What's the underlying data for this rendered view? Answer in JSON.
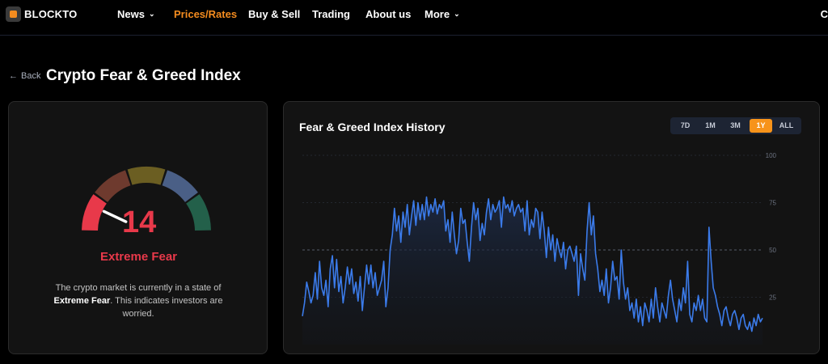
{
  "nav": {
    "logo_text": "BLOCKTO",
    "items": [
      {
        "label": "News",
        "dropdown": true
      },
      {
        "label": "Prices/Rates",
        "active": true
      },
      {
        "label": "Buy & Sell"
      },
      {
        "label": "Trading"
      },
      {
        "label": "About us"
      },
      {
        "label": "More",
        "dropdown": true
      }
    ],
    "edge_text": "C"
  },
  "header": {
    "back_label": "Back",
    "title": "Crypto Fear & Greed Index"
  },
  "gauge": {
    "value": "14",
    "label": "Extreme Fear",
    "description_pre": "The crypto market is currently in a state of ",
    "description_bold": "Extreme Fear",
    "description_post": ". This indicates investors are worried.",
    "colors": {
      "extreme_fear": "#e8394a",
      "fear": "#6e3a2e",
      "neutral": "#6b5e22",
      "greed": "#4a5f86",
      "extreme_greed": "#23604a"
    }
  },
  "history": {
    "title": "Fear & Greed Index History",
    "ranges": [
      "7D",
      "1M",
      "3M",
      "1Y",
      "ALL"
    ],
    "active_range": "1Y"
  },
  "chart_data": {
    "type": "area",
    "title": "Fear & Greed Index History",
    "ylim": [
      0,
      100
    ],
    "yticks": [
      25,
      50,
      75,
      100
    ],
    "reference_line": 50,
    "grid": true,
    "line_color": "#3b7bea",
    "values": [
      15,
      22,
      33,
      28,
      22,
      26,
      38,
      24,
      44,
      30,
      26,
      34,
      20,
      40,
      47,
      30,
      45,
      28,
      36,
      22,
      30,
      41,
      32,
      40,
      27,
      33,
      23,
      36,
      18,
      30,
      42,
      32,
      42,
      30,
      38,
      26,
      30,
      34,
      44,
      20,
      30,
      50,
      58,
      72,
      60,
      68,
      54,
      70,
      62,
      74,
      58,
      68,
      76,
      63,
      75,
      66,
      74,
      66,
      78,
      68,
      74,
      70,
      77,
      69,
      74,
      72,
      76,
      60,
      66,
      54,
      70,
      58,
      48,
      55,
      72,
      64,
      66,
      54,
      44,
      62,
      75,
      66,
      72,
      55,
      64,
      58,
      70,
      77,
      66,
      74,
      70,
      72,
      76,
      62,
      78,
      72,
      74,
      70,
      76,
      68,
      72,
      74,
      70,
      72,
      60,
      76,
      58,
      66,
      62,
      72,
      70,
      56,
      70,
      60,
      46,
      62,
      50,
      58,
      44,
      56,
      50,
      46,
      54,
      40,
      50,
      52,
      48,
      44,
      52,
      26,
      48,
      40,
      34,
      60,
      75,
      58,
      68,
      48,
      40,
      28,
      34,
      26,
      40,
      22,
      30,
      44,
      34,
      36,
      24,
      50,
      33,
      24,
      30,
      18,
      22,
      14,
      24,
      12,
      20,
      10,
      22,
      18,
      12,
      24,
      14,
      30,
      20,
      12,
      22,
      18,
      14,
      26,
      34,
      24,
      18,
      12,
      24,
      18,
      30,
      22,
      44,
      16,
      12,
      22,
      18,
      26,
      18,
      24,
      14,
      12,
      62,
      44,
      30,
      26,
      20,
      16,
      10,
      18,
      20,
      14,
      10,
      16,
      18,
      14,
      8,
      14,
      16,
      10,
      8,
      12,
      7,
      14,
      10,
      16,
      12,
      14
    ]
  }
}
